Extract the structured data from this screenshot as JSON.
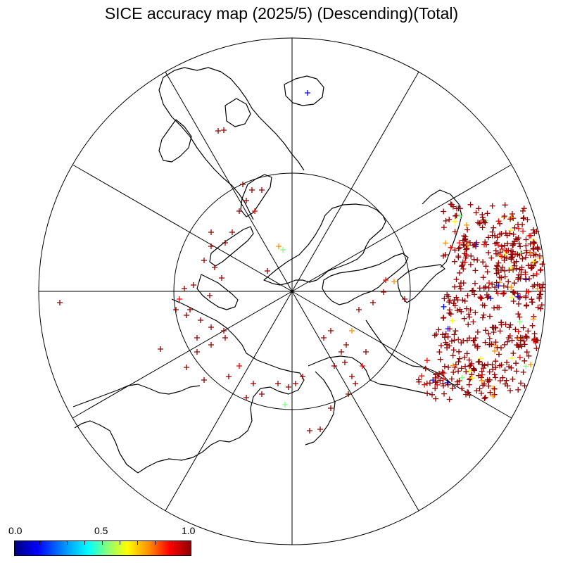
{
  "title": "SICE accuracy map (2025/5) (Descending)(Total)",
  "colorbar": {
    "min_label": "0.0",
    "mid_label": "0.5",
    "max_label": "1.0",
    "colors": [
      "#000080",
      "#0000ff",
      "#00a0ff",
      "#00ffff",
      "#80ff80",
      "#ffff00",
      "#ff9000",
      "#ff0000",
      "#900000"
    ]
  },
  "map": {
    "projection": "north-polar-stereographic",
    "meridian_lines": 12,
    "latitude_circle": "inner ring",
    "marker": "+",
    "dominant_marker_color": "#900000"
  }
}
